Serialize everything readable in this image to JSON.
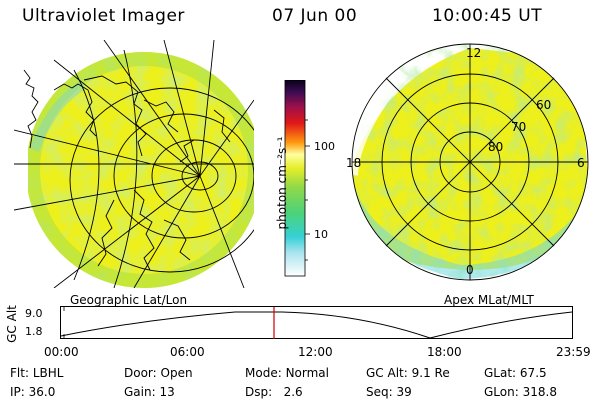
{
  "header": {
    "title": "Ultraviolet Imager",
    "date": "07 Jun 00",
    "time": "10:00:45 UT"
  },
  "left_panel": {
    "caption": "Geographic Lat/Lon"
  },
  "right_panel": {
    "caption": "Apex MLat/MLT",
    "mlt_labels": {
      "top": "12",
      "left": "18",
      "right": "6",
      "bottom": "0"
    },
    "lat_labels": [
      "60",
      "70",
      "80"
    ]
  },
  "colorbar": {
    "unit_label": "photon cm⁻²s⁻¹",
    "ticks": [
      "100",
      "10"
    ],
    "scale": "log"
  },
  "altitude_strip": {
    "axis_label": "GC Alt",
    "y_ticks": [
      "9.0",
      "1.8"
    ],
    "x_ticks": [
      "00:00",
      "06:00",
      "12:00",
      "18:00",
      "23:59"
    ],
    "marker_color": "#cc0000"
  },
  "info": {
    "row1": [
      {
        "k": "Flt:",
        "v": "LBHL"
      },
      {
        "k": "Door:",
        "v": "Open"
      },
      {
        "k": "Mode:",
        "v": "Normal"
      },
      {
        "k": "GC Alt:",
        "v": "9.1 Re"
      },
      {
        "k": "GLat:",
        "v": "67.5"
      }
    ],
    "row2": [
      {
        "k": "IP:",
        "v": "36.0"
      },
      {
        "k": "Gain:",
        "v": "13"
      },
      {
        "k": "Dsp:",
        "v": "2.6"
      },
      {
        "k": "Seq:",
        "v": "39"
      },
      {
        "k": "GLon:",
        "v": "318.8"
      }
    ]
  }
}
